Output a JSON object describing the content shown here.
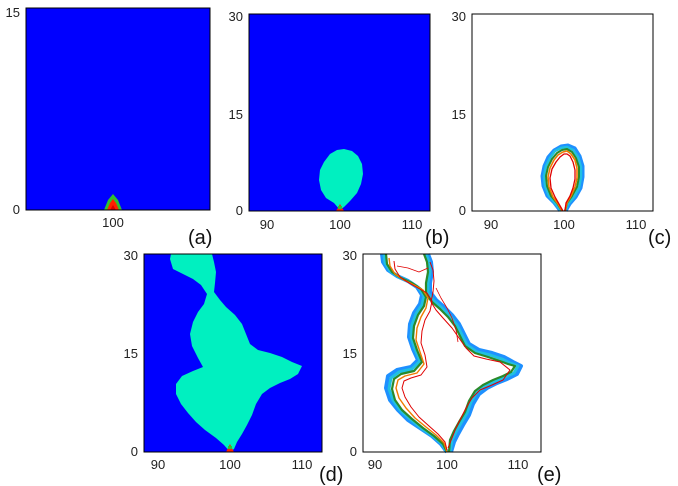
{
  "colors": {
    "background": "#0000ff",
    "grain": "#00f0c0",
    "seed": "#ff2000",
    "seed_core": "#d80000",
    "seed_halo": "#30c030",
    "contour_colors": [
      "#1e90ff",
      "#20c0e0",
      "#2a8a2a",
      "#f07a00",
      "#e00000"
    ]
  },
  "icons": {
    "seed": "seed-marker-icon"
  },
  "panels": [
    {
      "id": "a",
      "label": "(a)",
      "style": "field",
      "x_ticks": [
        "100"
      ],
      "y_ticks": [
        "0",
        "15"
      ]
    },
    {
      "id": "b",
      "label": "(b)",
      "style": "field",
      "x_ticks": [
        "90",
        "100",
        "110"
      ],
      "y_ticks": [
        "0",
        "15",
        "30"
      ]
    },
    {
      "id": "c",
      "label": "(c)",
      "style": "contour",
      "x_ticks": [
        "90",
        "100",
        "110"
      ],
      "y_ticks": [
        "0",
        "15",
        "30"
      ]
    },
    {
      "id": "d",
      "label": "(d)",
      "style": "field",
      "x_ticks": [
        "90",
        "100",
        "110"
      ],
      "y_ticks": [
        "0",
        "15",
        "30"
      ]
    },
    {
      "id": "e",
      "label": "(e)",
      "style": "contour",
      "x_ticks": [
        "90",
        "100",
        "110"
      ],
      "y_ticks": [
        "0",
        "15",
        "30"
      ]
    }
  ]
}
